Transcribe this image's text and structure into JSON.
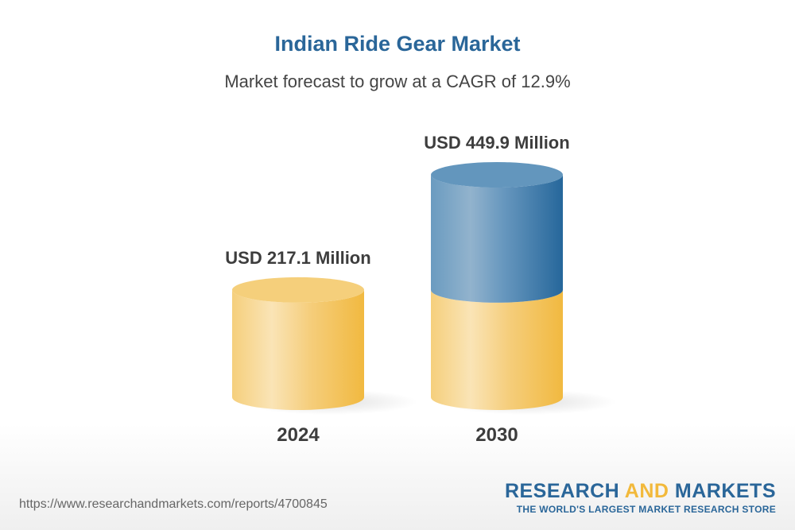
{
  "chart_data": {
    "type": "bar",
    "style": "3d-cylinder",
    "title": "Indian Ride Gear Market",
    "subtitle": "Market forecast to grow at a CAGR of 12.9%",
    "categories": [
      "2024",
      "2030"
    ],
    "values": [
      217.1,
      449.9
    ],
    "data_labels": [
      "USD 217.1 Million",
      "USD 449.9 Million"
    ],
    "unit": "USD Million",
    "colors": {
      "base": "#f2b93b",
      "growth": "#2a6699"
    },
    "grid": false
  },
  "footer": {
    "url": "https://www.researchandmarkets.com/reports/4700845",
    "logo": {
      "part1": "RESEARCH",
      "part2": "AND",
      "part3": "MARKETS",
      "tagline": "THE WORLD'S LARGEST MARKET RESEARCH STORE"
    }
  }
}
